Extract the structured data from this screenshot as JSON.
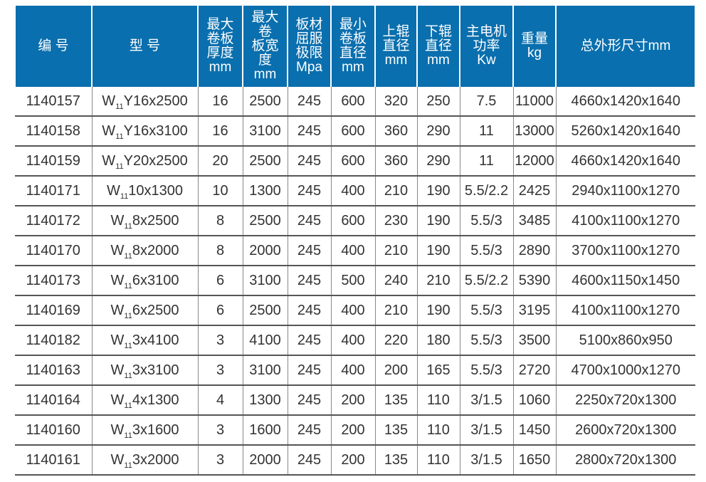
{
  "colors": {
    "header_bg": "#0a6fae",
    "header_text": "#ffffff",
    "row_border": "#555555"
  },
  "headers": [
    [
      "编 号"
    ],
    [
      "型 号"
    ],
    [
      "最大",
      "卷板",
      "厚度",
      "mm"
    ],
    [
      "最大",
      "卷",
      "板宽",
      "度",
      "mm"
    ],
    [
      "板材",
      "屈服",
      "极限",
      "Mpa"
    ],
    [
      "最小",
      "卷板",
      "直径",
      "mm"
    ],
    [
      "上辊",
      "直径",
      "mm"
    ],
    [
      "下辊",
      "直径",
      "mm"
    ],
    [
      "主电机",
      "功率",
      "Kw"
    ],
    [
      "重量",
      "kg"
    ],
    [
      "总外形尺寸mm"
    ]
  ],
  "rows": [
    {
      "code": "1140157",
      "model": {
        "prefix": "W",
        "sub": "11",
        "rest": "Y16x2500"
      },
      "cells": [
        "16",
        "2500",
        "245",
        "600",
        "320",
        "250",
        "7.5",
        "11000",
        "4660x1420x1640"
      ]
    },
    {
      "code": "1140158",
      "model": {
        "prefix": "W",
        "sub": "11",
        "rest": "Y16x3100"
      },
      "cells": [
        "16",
        "3100",
        "245",
        "600",
        "360",
        "290",
        "11",
        "13000",
        "5260x1420x1640"
      ]
    },
    {
      "code": "1140159",
      "model": {
        "prefix": "W",
        "sub": "11",
        "rest": "Y20x2500"
      },
      "cells": [
        "20",
        "2500",
        "245",
        "600",
        "360",
        "290",
        "11",
        "12000",
        "4660x1420x1640"
      ]
    },
    {
      "code": "1140171",
      "model": {
        "prefix": "W",
        "sub": "11",
        "rest": "10x1300"
      },
      "cells": [
        "10",
        "1300",
        "245",
        "400",
        "210",
        "190",
        "5.5/2.2",
        "2425",
        "2940x1100x1270"
      ]
    },
    {
      "code": "1140172",
      "model": {
        "prefix": "W",
        "sub": "11",
        "rest": "8x2500"
      },
      "cells": [
        "8",
        "2500",
        "245",
        "600",
        "230",
        "190",
        "5.5/3",
        "3485",
        "4100x1100x1270"
      ]
    },
    {
      "code": "1140170",
      "model": {
        "prefix": "W",
        "sub": "11",
        "rest": "8x2000"
      },
      "cells": [
        "8",
        "2000",
        "245",
        "400",
        "210",
        "190",
        "5.5/3",
        "2890",
        "3700x1100x1270"
      ]
    },
    {
      "code": "1140173",
      "model": {
        "prefix": "W",
        "sub": "11",
        "rest": "6x3100"
      },
      "cells": [
        "6",
        "3100",
        "245",
        "500",
        "240",
        "210",
        "5.5/2.2",
        "5390",
        "4600x1150x1450"
      ]
    },
    {
      "code": "1140169",
      "model": {
        "prefix": "W",
        "sub": "11",
        "rest": "6x2500"
      },
      "cells": [
        "6",
        "2500",
        "245",
        "400",
        "210",
        "190",
        "5.5/3",
        "3195",
        "4100x1100x1270"
      ]
    },
    {
      "code": "1140182",
      "model": {
        "prefix": "W",
        "sub": "11",
        "rest": "3x4100"
      },
      "cells": [
        "3",
        "4100",
        "245",
        "400",
        "220",
        "180",
        "5.5/3",
        "3500",
        "5100x860x950"
      ]
    },
    {
      "code": "1140163",
      "model": {
        "prefix": "W",
        "sub": "11",
        "rest": "3x3100"
      },
      "cells": [
        "3",
        "3100",
        "245",
        "400",
        "200",
        "165",
        "5.5/3",
        "2720",
        "4700x1000x1270"
      ]
    },
    {
      "code": "1140164",
      "model": {
        "prefix": "W",
        "sub": "11",
        "rest": "4x1300"
      },
      "cells": [
        "4",
        "1300",
        "245",
        "200",
        "135",
        "110",
        "3/1.5",
        "1060",
        "2250x720x1300"
      ]
    },
    {
      "code": "1140160",
      "model": {
        "prefix": "W",
        "sub": "11",
        "rest": "3x1600"
      },
      "cells": [
        "3",
        "1600",
        "245",
        "200",
        "135",
        "110",
        "3/1.5",
        "1450",
        "2600x720x1300"
      ]
    },
    {
      "code": "1140161",
      "model": {
        "prefix": "W",
        "sub": "11",
        "rest": "3x2000"
      },
      "cells": [
        "3",
        "2000",
        "245",
        "200",
        "135",
        "110",
        "3/1.5",
        "1650",
        "2800x720x1300"
      ]
    }
  ]
}
